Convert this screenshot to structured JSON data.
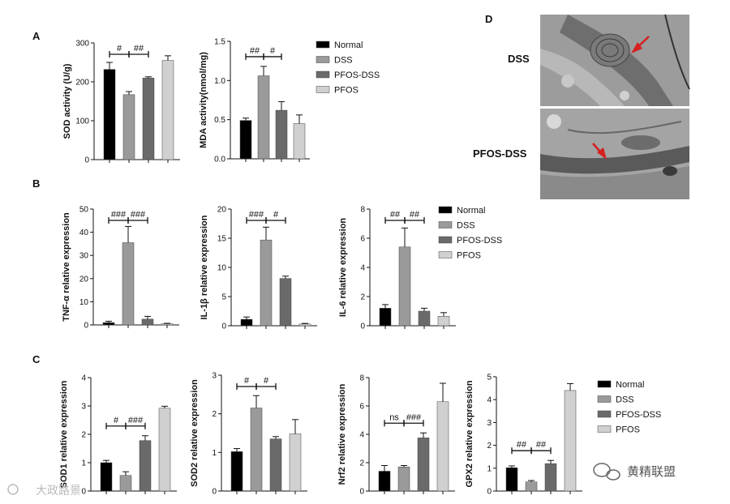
{
  "legend": [
    "Normal",
    "DSS",
    "PFOS-DSS",
    "PFOS"
  ],
  "colors": {
    "Normal": "#000000",
    "DSS": "#9a9a9a",
    "PFOS-DSS": "#6a6a6a",
    "PFOS": "#d0d0d0",
    "arrow": "#d42020"
  },
  "panel_labels": {
    "A": "A",
    "B": "B",
    "C": "C",
    "D": "D"
  },
  "em": {
    "dss_label": "DSS",
    "pfos_dss_label": "PFOS-DSS"
  },
  "watermark": {
    "left_text": "大政路景",
    "right_text": "黄精联盟"
  },
  "chart_data": [
    {
      "type": "bar",
      "panel": "A",
      "ylabel": "SOD activity (U/g)",
      "ylim": [
        0,
        300
      ],
      "ticks": [
        0,
        100,
        200,
        300
      ],
      "categories": [
        "Normal",
        "DSS",
        "PFOS-DSS",
        "PFOS"
      ],
      "values": [
        232,
        167,
        210,
        255
      ],
      "errors": [
        18,
        8,
        3,
        12
      ],
      "annotations": [
        {
          "from": 0,
          "to": 1,
          "label": "#"
        },
        {
          "from": 1,
          "to": 2,
          "label": "##"
        }
      ]
    },
    {
      "type": "bar",
      "panel": "A",
      "ylabel": "MDA activity(nmol/mg)",
      "ylim": [
        0,
        1.5
      ],
      "ticks": [
        "0.0",
        "0.5",
        "1.0",
        "1.5"
      ],
      "categories": [
        "Normal",
        "DSS",
        "PFOS-DSS",
        "PFOS"
      ],
      "values": [
        0.49,
        1.06,
        0.62,
        0.45
      ],
      "errors": [
        0.03,
        0.12,
        0.11,
        0.11
      ],
      "annotations": [
        {
          "from": 0,
          "to": 1,
          "label": "##"
        },
        {
          "from": 1,
          "to": 2,
          "label": "#"
        }
      ]
    },
    {
      "type": "bar",
      "panel": "B",
      "ylabel": "TNF-α relative expression",
      "ylim": [
        0,
        50
      ],
      "ticks": [
        0,
        10,
        20,
        30,
        40,
        50
      ],
      "categories": [
        "Normal",
        "DSS",
        "PFOS-DSS",
        "PFOS"
      ],
      "values": [
        1.0,
        35.5,
        2.5,
        0.5
      ],
      "errors": [
        0.6,
        7.0,
        1.2,
        0.2
      ],
      "annotations": [
        {
          "from": 0,
          "to": 1,
          "label": "###"
        },
        {
          "from": 1,
          "to": 2,
          "label": "###"
        }
      ]
    },
    {
      "type": "bar",
      "panel": "B",
      "ylabel": "IL-1β relative expression",
      "ylim": [
        0,
        20
      ],
      "ticks": [
        0,
        5,
        10,
        15,
        20
      ],
      "categories": [
        "Normal",
        "DSS",
        "PFOS-DSS",
        "PFOS"
      ],
      "values": [
        1.1,
        14.7,
        8.1,
        0.3
      ],
      "errors": [
        0.4,
        2.2,
        0.4,
        0.1
      ],
      "annotations": [
        {
          "from": 0,
          "to": 1,
          "label": "###"
        },
        {
          "from": 1,
          "to": 2,
          "label": "#"
        }
      ]
    },
    {
      "type": "bar",
      "panel": "B",
      "ylabel": "IL-6 relative expression",
      "ylim": [
        0,
        8
      ],
      "ticks": [
        0,
        2,
        4,
        6,
        8
      ],
      "categories": [
        "Normal",
        "DSS",
        "PFOS-DSS",
        "PFOS"
      ],
      "values": [
        1.2,
        5.4,
        1.0,
        0.65
      ],
      "errors": [
        0.25,
        1.3,
        0.2,
        0.25
      ],
      "annotations": [
        {
          "from": 0,
          "to": 1,
          "label": "##"
        },
        {
          "from": 1,
          "to": 2,
          "label": "##"
        }
      ]
    },
    {
      "type": "bar",
      "panel": "C",
      "ylabel": "SOD1 relative expression",
      "ylim": [
        0,
        4
      ],
      "ticks": [
        0,
        1,
        2,
        3,
        4
      ],
      "categories": [
        "Normal",
        "DSS",
        "PFOS-DSS",
        "PFOS"
      ],
      "values": [
        1.0,
        0.55,
        1.78,
        2.92
      ],
      "errors": [
        0.08,
        0.13,
        0.17,
        0.07
      ],
      "annotations": [
        {
          "from": 0,
          "to": 1,
          "label": "#"
        },
        {
          "from": 1,
          "to": 2,
          "label": "###"
        }
      ]
    },
    {
      "type": "bar",
      "panel": "C",
      "ylabel": "SOD2 relative expression",
      "ylim": [
        0,
        3
      ],
      "ticks": [
        0,
        1,
        2,
        3
      ],
      "categories": [
        "Normal",
        "DSS",
        "PFOS-DSS",
        "PFOS"
      ],
      "values": [
        1.02,
        2.15,
        1.35,
        1.48
      ],
      "errors": [
        0.08,
        0.32,
        0.06,
        0.37
      ],
      "annotations": [
        {
          "from": 0,
          "to": 1,
          "label": "#"
        },
        {
          "from": 1,
          "to": 2,
          "label": "#"
        }
      ]
    },
    {
      "type": "bar",
      "panel": "C",
      "ylabel": "Nrf2 relative expression",
      "ylim": [
        0,
        8
      ],
      "ticks": [
        0,
        2,
        4,
        6,
        8
      ],
      "categories": [
        "Normal",
        "DSS",
        "PFOS-DSS",
        "PFOS"
      ],
      "values": [
        1.4,
        1.7,
        3.75,
        6.3
      ],
      "errors": [
        0.4,
        0.1,
        0.35,
        1.3
      ],
      "annotations": [
        {
          "from": 0,
          "to": 1,
          "label": "ns"
        },
        {
          "from": 1,
          "to": 2,
          "label": "###"
        }
      ]
    },
    {
      "type": "bar",
      "panel": "C",
      "ylabel": "GPX2 relative expression",
      "ylim": [
        0,
        5
      ],
      "ticks": [
        0,
        1,
        2,
        3,
        4,
        5
      ],
      "categories": [
        "Normal",
        "DSS",
        "PFOS-DSS",
        "PFOS"
      ],
      "values": [
        1.02,
        0.4,
        1.2,
        4.4
      ],
      "errors": [
        0.08,
        0.06,
        0.14,
        0.3
      ],
      "annotations": [
        {
          "from": 0,
          "to": 1,
          "label": "##"
        },
        {
          "from": 1,
          "to": 2,
          "label": "##"
        }
      ]
    }
  ]
}
